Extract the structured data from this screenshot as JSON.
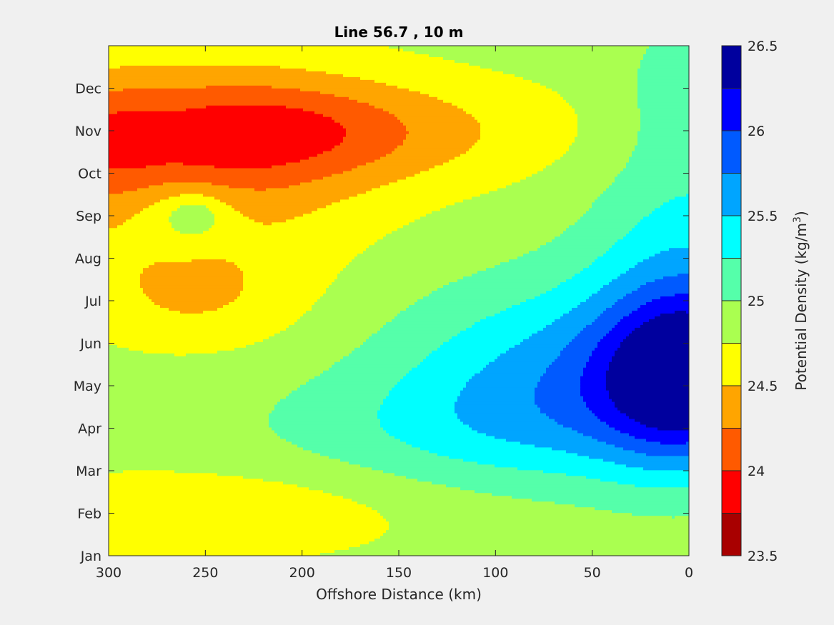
{
  "chart_data": {
    "type": "contour",
    "title": "Line 56.7 , 10 m",
    "xlabel": "Offshore Distance (km)",
    "ylabel": "",
    "x_reversed": true,
    "xlim": [
      300,
      0
    ],
    "x_ticks": [
      300,
      250,
      200,
      150,
      100,
      50,
      0
    ],
    "y_ticks": [
      "Jan",
      "Feb",
      "Mar",
      "Apr",
      "May",
      "Jun",
      "Jul",
      "Aug",
      "Sep",
      "Oct",
      "Nov",
      "Dec"
    ],
    "colorbar": {
      "label": "Potential Density",
      "unit_prefix": "(kg/m",
      "unit_superscript": "3",
      "unit_suffix": ")",
      "range": [
        23.5,
        26.5
      ],
      "levels": [
        23.5,
        23.75,
        24.0,
        24.25,
        24.5,
        24.75,
        25.0,
        25.25,
        25.5,
        25.75,
        26.0,
        26.25,
        26.5
      ],
      "tick_values": [
        23.5,
        24,
        24.5,
        25,
        25.5,
        26,
        26.5
      ],
      "tick_labels": [
        "23.5",
        "24",
        "24.5",
        "25",
        "25.5",
        "26",
        "26.5"
      ],
      "colors": [
        "#a80000",
        "#ff0000",
        "#ff5a00",
        "#ffa500",
        "#ffff00",
        "#aaff50",
        "#55ffaa",
        "#00ffff",
        "#00a5ff",
        "#005aff",
        "#0000ff",
        "#00009e"
      ]
    },
    "grid": false,
    "field_description": "Lower density (23.75-24.25) offshore (250-300 km) in summer/fall (Jun-Nov), peak low ~24.0 near 300 km Oct and 230 km Nov; higher density (25.5-26.3) nearshore (0-40 km) in spring (Apr-Jun), max ~26.3 at 0-10 km in Apr-May; intermediate 24.5-25.25 elsewhere."
  }
}
